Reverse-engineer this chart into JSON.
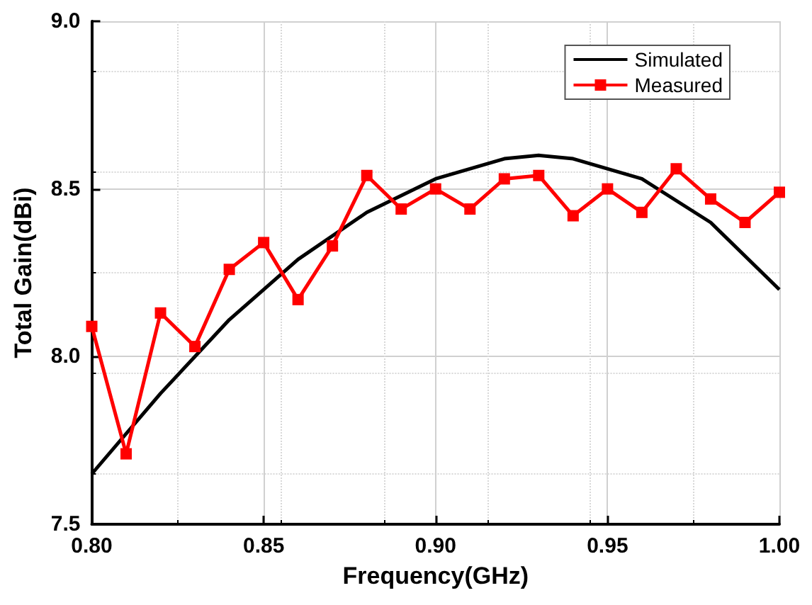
{
  "chart_data": {
    "type": "line",
    "xlabel": "Frequency(GHz)",
    "ylabel": "Total Gain(dBi)",
    "xlim": [
      0.8,
      1.0
    ],
    "xticks": [
      {
        "value": 0.8,
        "label": "0.80"
      },
      {
        "value": 0.85,
        "label": "0.85"
      },
      {
        "value": 0.9,
        "label": "0.90"
      },
      {
        "value": 0.95,
        "label": "0.95"
      },
      {
        "value": 1.0,
        "label": "1.00"
      }
    ],
    "ylim": [
      7.5,
      9.0
    ],
    "yticks": [
      7.5,
      {
        "value": 8.0,
        "label": "8.0"
      },
      8.5,
      {
        "value": 9.0,
        "label": "9.0"
      }
    ],
    "grid": true,
    "legend": "top right",
    "series": [
      {
        "name": "Simulated",
        "color": "#000000",
        "marker": "none",
        "x": [
          0.8,
          0.82,
          0.84,
          0.86,
          0.88,
          0.9,
          0.92,
          0.93,
          0.94,
          0.96,
          0.98,
          1.0
        ],
        "values": [
          7.65,
          7.89,
          8.11,
          8.29,
          8.43,
          8.53,
          8.59,
          8.6,
          8.59,
          8.53,
          8.4,
          8.2
        ]
      },
      {
        "name": "Measured",
        "color": "#ff0000",
        "marker": "square",
        "x": [
          0.8,
          0.81,
          0.82,
          0.83,
          0.84,
          0.85,
          0.86,
          0.87,
          0.88,
          0.89,
          0.9,
          0.91,
          0.92,
          0.93,
          0.94,
          0.95,
          0.96,
          0.97,
          0.98,
          0.99,
          1.0
        ],
        "values": [
          8.09,
          7.71,
          8.13,
          8.03,
          8.26,
          8.34,
          8.17,
          8.33,
          8.54,
          8.44,
          8.5,
          8.44,
          8.53,
          8.54,
          8.42,
          8.5,
          8.43,
          8.56,
          8.47,
          8.4,
          8.49
        ]
      }
    ]
  }
}
